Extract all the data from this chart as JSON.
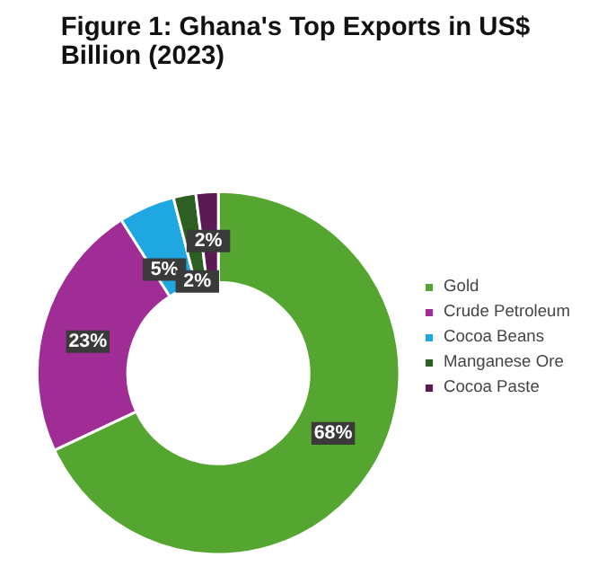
{
  "chart_data": {
    "type": "donut",
    "title": "Figure 1: Ghana's Top Exports in US$\nBillion (2023)",
    "categories": [
      "Gold",
      "Crude Petroleum",
      "Cocoa Beans",
      "Manganese Ore",
      "Cocoa Paste"
    ],
    "values": [
      68,
      23,
      5,
      2,
      2
    ],
    "colors": [
      "#55a630",
      "#a02c96",
      "#1ea7e0",
      "#2d5f22",
      "#5c1a55"
    ],
    "value_labels": [
      "68%",
      "23%",
      "5%",
      "2%",
      "2%"
    ],
    "legend": "right"
  }
}
